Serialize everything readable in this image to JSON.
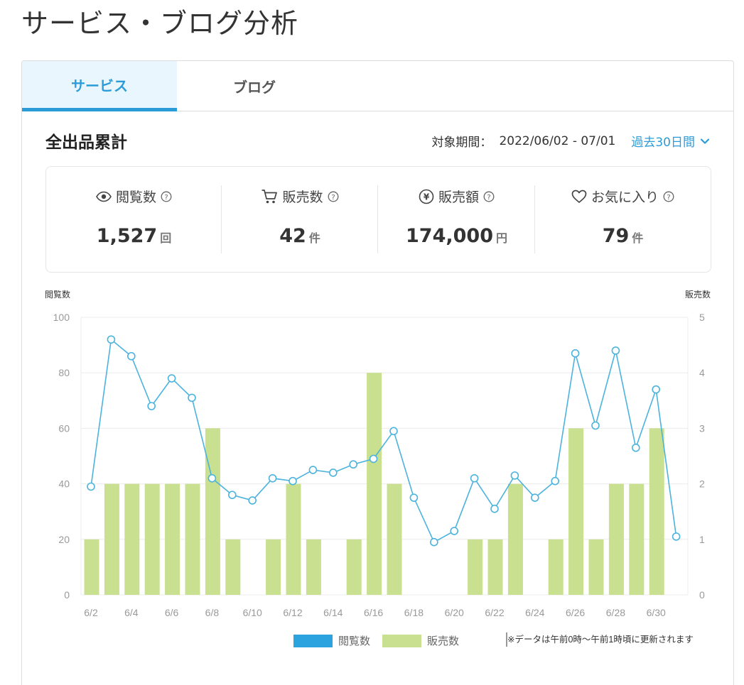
{
  "page": {
    "title": "サービス・ブログ分析"
  },
  "tabs": [
    {
      "label": "サービス",
      "active": true
    },
    {
      "label": "ブログ",
      "active": false
    }
  ],
  "summary": {
    "title": "全出品累計",
    "period_label": "対象期間：",
    "period_range": "2022/06/02 - 07/01",
    "period_select": "過去30日間"
  },
  "stats": [
    {
      "label": "閲覧数",
      "icon": "eye-icon",
      "value": "1,527",
      "unit": "回"
    },
    {
      "label": "販売数",
      "icon": "cart-icon",
      "value": "42",
      "unit": "件"
    },
    {
      "label": "販売額",
      "icon": "yen-icon",
      "value": "174,000",
      "unit": "円"
    },
    {
      "label": "お気に入り",
      "icon": "heart-icon",
      "value": "79",
      "unit": "件"
    }
  ],
  "colors": {
    "accent": "#2b9cd8",
    "bar": "#c8e08f",
    "line": "#4bb3de",
    "legend_views": "#2ba3de"
  },
  "chart_data": {
    "type": "bar",
    "left_axis_label": "閲覧数",
    "right_axis_label": "販売数",
    "left_ylim": [
      0,
      100
    ],
    "right_ylim": [
      0,
      5
    ],
    "left_ticks": [
      "0",
      "20",
      "40",
      "60",
      "80",
      "100"
    ],
    "right_ticks": [
      "0",
      "1",
      "2",
      "3",
      "4",
      "5"
    ],
    "x": [
      "6/2",
      "6/3",
      "6/4",
      "6/5",
      "6/6",
      "6/7",
      "6/8",
      "6/9",
      "6/10",
      "6/11",
      "6/12",
      "6/13",
      "6/14",
      "6/15",
      "6/16",
      "6/17",
      "6/18",
      "6/19",
      "6/20",
      "6/21",
      "6/22",
      "6/23",
      "6/24",
      "6/25",
      "6/26",
      "6/27",
      "6/28",
      "6/29",
      "6/30",
      "7/1"
    ],
    "x_tick_labels": [
      "6/2",
      "6/4",
      "6/6",
      "6/8",
      "6/10",
      "6/12",
      "6/14",
      "6/16",
      "6/18",
      "6/20",
      "6/22",
      "6/24",
      "6/26",
      "6/28",
      "6/30"
    ],
    "series": [
      {
        "name": "閲覧数",
        "type": "line",
        "axis": "left",
        "values": [
          39,
          92,
          86,
          68,
          78,
          71,
          42,
          36,
          34,
          42,
          41,
          45,
          44,
          47,
          49,
          59,
          35,
          19,
          23,
          42,
          31,
          43,
          35,
          41,
          87,
          61,
          88,
          53,
          74,
          21
        ]
      },
      {
        "name": "販売数",
        "type": "bar",
        "axis": "right",
        "values": [
          1,
          2,
          2,
          2,
          2,
          2,
          3,
          1,
          0,
          1,
          2,
          1,
          0,
          1,
          4,
          2,
          0,
          0,
          0,
          1,
          1,
          2,
          0,
          1,
          3,
          1,
          2,
          2,
          3,
          0
        ]
      }
    ],
    "grid": true,
    "legend": "bottom",
    "note": "※データは午前0時～午前1時頃に更新されます"
  }
}
